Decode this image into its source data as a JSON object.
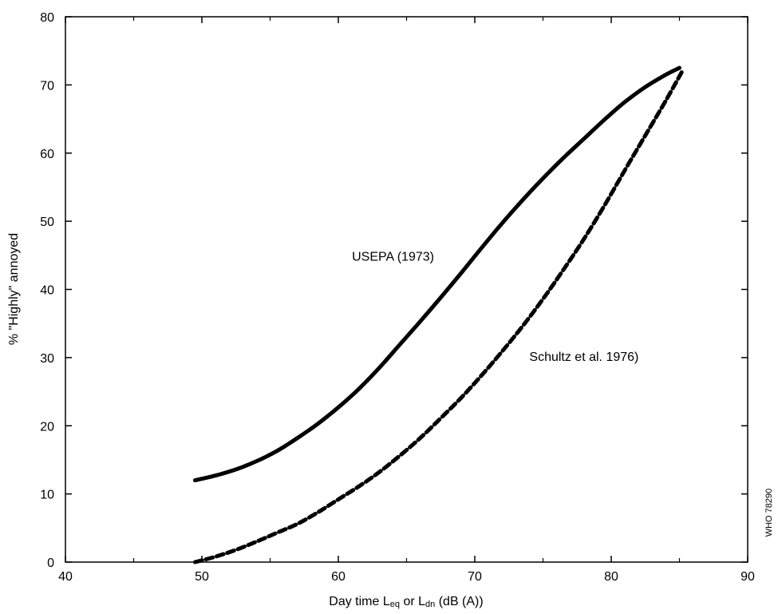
{
  "chart_data": {
    "type": "line",
    "title": "",
    "xlabel": {
      "parts": [
        {
          "text": "Day time L",
          "sub": false
        },
        {
          "text": "eq",
          "sub": true
        },
        {
          "text": " or L",
          "sub": false
        },
        {
          "text": "dn",
          "sub": true
        },
        {
          "text": " (dB (A))",
          "sub": false
        }
      ]
    },
    "ylabel": "% \"Highly\" annoyed",
    "xlim": [
      40,
      90
    ],
    "ylim": [
      0,
      80
    ],
    "xticks": [
      40,
      50,
      60,
      70,
      80,
      90
    ],
    "yticks": [
      0,
      10,
      20,
      30,
      40,
      50,
      60,
      70,
      80
    ],
    "grid": false,
    "series": [
      {
        "name": "USEPA (1973)",
        "style": "solid",
        "color": "#000000",
        "x": [
          49.5,
          51,
          52.5,
          54,
          55.5,
          57,
          58.5,
          60,
          61.5,
          63,
          64.5,
          66,
          67.5,
          69,
          70.5,
          72,
          73.5,
          75,
          76.5,
          78,
          79.5,
          81,
          82.5,
          84,
          85
        ],
        "y": [
          12,
          12.7,
          13.6,
          14.8,
          16.3,
          18.2,
          20.3,
          22.7,
          25.4,
          28.5,
          31.9,
          35.3,
          38.8,
          42.4,
          46.1,
          49.7,
          53.1,
          56.3,
          59.3,
          62.1,
          64.9,
          67.5,
          69.7,
          71.5,
          72.5
        ]
      },
      {
        "name": "Schultz et al. 1976)",
        "style": "dashed",
        "color": "#000000",
        "x": [
          49.5,
          51,
          52.5,
          54,
          55.5,
          57,
          58.5,
          60,
          61.5,
          63,
          64.5,
          66,
          67.5,
          69,
          70.5,
          72,
          73.5,
          75,
          76.5,
          78,
          79.5,
          81,
          82.5,
          84,
          85.2
        ],
        "y": [
          0,
          0.8,
          1.8,
          3.0,
          4.3,
          5.6,
          7.3,
          9.2,
          11.1,
          13.2,
          15.6,
          18.2,
          21.1,
          24.1,
          27.4,
          30.9,
          34.6,
          38.6,
          42.9,
          47.4,
          52.3,
          57.5,
          62.6,
          67.7,
          72
        ]
      }
    ],
    "annotations": [
      {
        "text": "USEPA (1973)",
        "x": 61,
        "y": 44.2,
        "anchor": "start"
      },
      {
        "text": "Schultz et al. 1976)",
        "x": 74,
        "y": 29.5,
        "anchor": "start"
      }
    ],
    "side_note": "WHO 78290"
  }
}
